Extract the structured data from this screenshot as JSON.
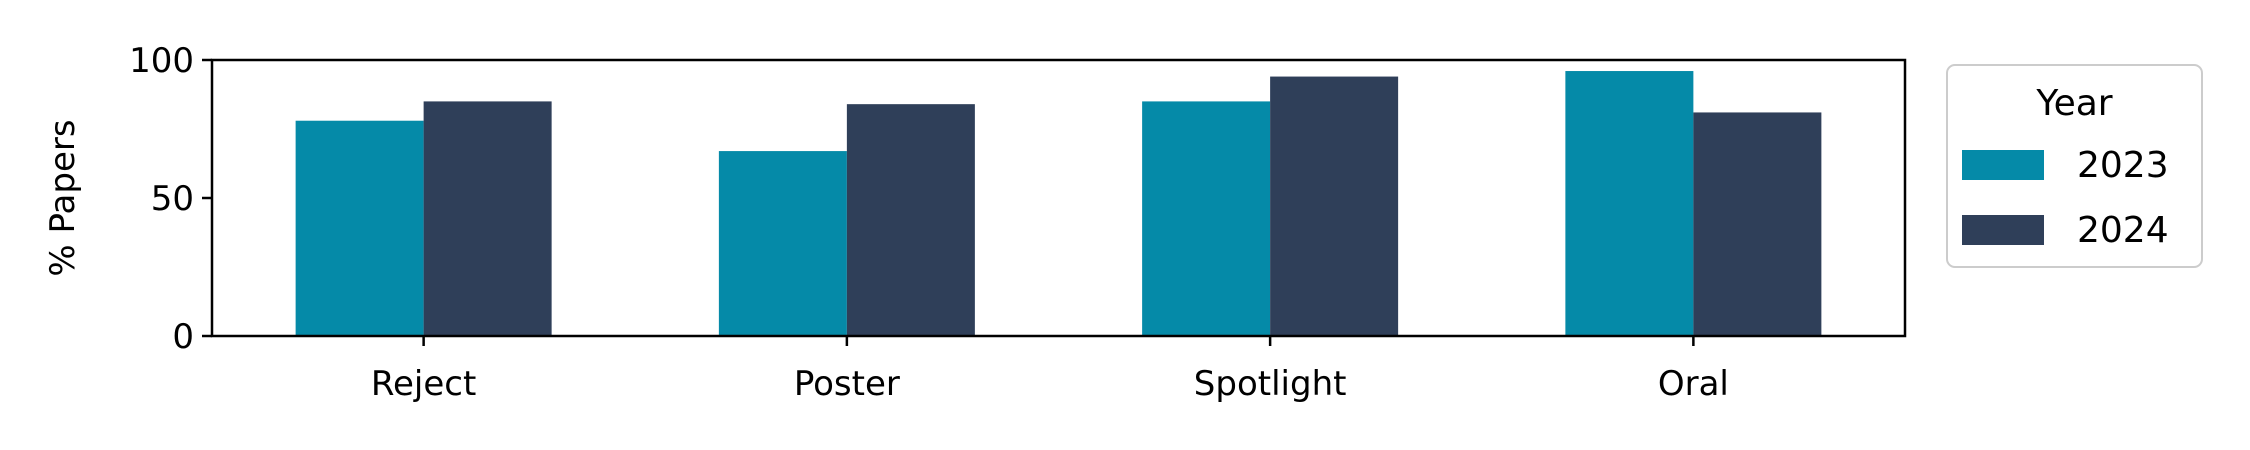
{
  "chart_data": {
    "type": "bar",
    "title": "",
    "xlabel": "",
    "ylabel": "% Papers",
    "categories": [
      "Reject",
      "Poster",
      "Spotlight",
      "Oral"
    ],
    "series": [
      {
        "name": "2023",
        "color": "#058aa8",
        "values": [
          78,
          67,
          85,
          96
        ]
      },
      {
        "name": "2024",
        "color": "#2f3f59",
        "values": [
          85,
          84,
          94,
          81
        ]
      }
    ],
    "ylim": [
      0,
      100
    ],
    "yticks": [
      0,
      50,
      100
    ],
    "grid": false,
    "legend": {
      "title": "Year",
      "placement": "outside-right-top"
    }
  }
}
